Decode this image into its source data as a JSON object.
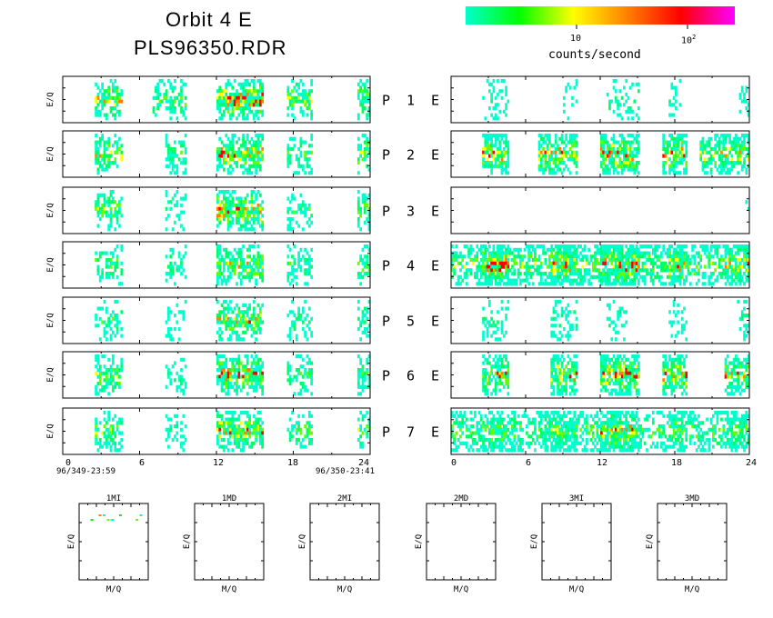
{
  "header": {
    "title_line1": "Orbit 4 E",
    "title_line2": "PLS96350.RDR",
    "colorbar_tick_10": "10",
    "colorbar_tick_100": "10",
    "colorbar_tick_100_exp": "2",
    "colorbar_label": "counts/second",
    "colorbar_colors": [
      "#00ffcc",
      "#00ff00",
      "#ffff00",
      "#ff8000",
      "#ff0000",
      "#ff00ff"
    ]
  },
  "chart_data": [
    {
      "type": "heatmap",
      "group": "left-P-panels",
      "ylabel": "E/Q",
      "x_ticks": [
        "0",
        "6",
        "12",
        "18",
        "24"
      ],
      "xlim": [
        0,
        24
      ],
      "start_time": "96/349-23:59",
      "end_time": "96/350-23:41",
      "panels": [
        {
          "label": "P",
          "num": "1",
          "activity": [
            [
              2.5,
              4.5,
              0.8
            ],
            [
              7,
              9.5,
              0.6
            ],
            [
              12,
              15.5,
              1.0
            ],
            [
              17.5,
              19.5,
              0.7
            ],
            [
              23,
              24,
              0.8
            ]
          ]
        },
        {
          "label": "P",
          "num": "2",
          "activity": [
            [
              2.5,
              4.5,
              0.8
            ],
            [
              8,
              9.5,
              0.5
            ],
            [
              12,
              15.5,
              0.9
            ],
            [
              17.5,
              19.5,
              0.6
            ],
            [
              23,
              24,
              0.7
            ]
          ]
        },
        {
          "label": "P",
          "num": "3",
          "activity": [
            [
              2.5,
              4.5,
              0.7
            ],
            [
              8,
              9.5,
              0.4
            ],
            [
              12,
              15.5,
              0.9
            ],
            [
              17.5,
              19.5,
              0.5
            ],
            [
              23,
              24,
              0.6
            ]
          ]
        },
        {
          "label": "P",
          "num": "4",
          "activity": [
            [
              2.5,
              4.5,
              0.6
            ],
            [
              8,
              9.5,
              0.4
            ],
            [
              12,
              15.5,
              0.8
            ],
            [
              17.5,
              19.5,
              0.5
            ],
            [
              23,
              24,
              0.6
            ]
          ]
        },
        {
          "label": "P",
          "num": "5",
          "activity": [
            [
              2.5,
              4.5,
              0.5
            ],
            [
              8,
              9.5,
              0.3
            ],
            [
              12,
              15.5,
              0.8
            ],
            [
              17.5,
              19.5,
              0.4
            ],
            [
              23,
              24,
              0.5
            ]
          ]
        },
        {
          "label": "P",
          "num": "6",
          "activity": [
            [
              2.5,
              4.5,
              0.7
            ],
            [
              8,
              9.5,
              0.4
            ],
            [
              12,
              15.5,
              0.9
            ],
            [
              17.5,
              19.5,
              0.6
            ],
            [
              23,
              24,
              0.6
            ]
          ]
        },
        {
          "label": "P",
          "num": "7",
          "activity": [
            [
              2.5,
              4.5,
              0.7
            ],
            [
              8,
              9.5,
              0.4
            ],
            [
              12,
              15.5,
              0.9
            ],
            [
              17.5,
              19.5,
              0.6
            ],
            [
              23,
              24,
              0.7
            ]
          ]
        }
      ]
    },
    {
      "type": "heatmap",
      "group": "right-E-panels",
      "x_ticks": [
        "0",
        "6",
        "12",
        "18",
        "24"
      ],
      "xlim": [
        0,
        24
      ],
      "panels": [
        {
          "label": "E",
          "activity": [
            [
              2.5,
              4.5,
              0.3
            ],
            [
              9,
              10,
              0.25
            ],
            [
              12.5,
              15,
              0.4
            ],
            [
              17.5,
              18.5,
              0.3
            ],
            [
              23,
              24,
              0.3
            ]
          ]
        },
        {
          "label": "E",
          "activity": [
            [
              2.5,
              4.5,
              0.9
            ],
            [
              7,
              10,
              0.9
            ],
            [
              12,
              15,
              1.0
            ],
            [
              17,
              19,
              0.9
            ],
            [
              20,
              24,
              0.8
            ]
          ]
        },
        {
          "label": "E",
          "activity": [
            [
              23.5,
              24,
              0.05
            ]
          ]
        },
        {
          "label": "E",
          "activity": [
            [
              0,
              24,
              0.7
            ],
            [
              2.5,
              4.5,
              1.0
            ],
            [
              8,
              10,
              0.9
            ],
            [
              12,
              15,
              1.0
            ],
            [
              17.5,
              19,
              0.9
            ],
            [
              22,
              24,
              0.8
            ]
          ]
        },
        {
          "label": "E",
          "activity": [
            [
              2.5,
              4.5,
              0.4
            ],
            [
              8,
              10,
              0.4
            ],
            [
              12.5,
              14,
              0.4
            ],
            [
              17.5,
              19,
              0.3
            ],
            [
              23,
              24,
              0.4
            ]
          ]
        },
        {
          "label": "E",
          "activity": [
            [
              2.5,
              4.5,
              0.9
            ],
            [
              8,
              10,
              0.9
            ],
            [
              12,
              15,
              1.0
            ],
            [
              17,
              19,
              0.9
            ],
            [
              22,
              24,
              0.8
            ]
          ]
        },
        {
          "label": "E",
          "activity": [
            [
              0,
              24,
              0.6
            ],
            [
              3,
              4.5,
              0.7
            ],
            [
              8,
              10,
              0.7
            ],
            [
              12,
              15,
              0.9
            ],
            [
              17.5,
              19,
              0.7
            ],
            [
              22,
              24,
              0.6
            ]
          ]
        }
      ]
    },
    {
      "type": "heatmap",
      "group": "bottom-MQ-panels",
      "ylabel": "E/Q",
      "xlabel": "M/Q",
      "panels": [
        {
          "label": "1MI",
          "has_data": true
        },
        {
          "label": "1MD",
          "has_data": false
        },
        {
          "label": "2MI",
          "has_data": false
        },
        {
          "label": "2MD",
          "has_data": false
        },
        {
          "label": "3MI",
          "has_data": false
        },
        {
          "label": "3MD",
          "has_data": false
        }
      ]
    }
  ]
}
